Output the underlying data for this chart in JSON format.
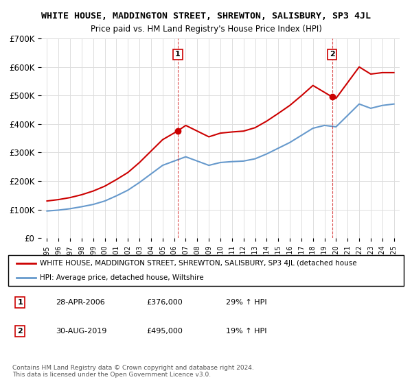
{
  "title": "WHITE HOUSE, MADDINGTON STREET, SHREWTON, SALISBURY, SP3 4JL",
  "subtitle": "Price paid vs. HM Land Registry's House Price Index (HPI)",
  "xlabel": "",
  "ylabel": "",
  "ylim": [
    0,
    700000
  ],
  "yticks": [
    0,
    100000,
    200000,
    300000,
    400000,
    500000,
    600000,
    700000
  ],
  "ytick_labels": [
    "£0",
    "£100K",
    "£200K",
    "£300K",
    "£400K",
    "£500K",
    "£600K",
    "£700K"
  ],
  "sale1_year": 2006.32,
  "sale1_price": 376000,
  "sale1_label": "1",
  "sale2_year": 2019.66,
  "sale2_price": 495000,
  "sale2_label": "2",
  "red_line_color": "#cc0000",
  "blue_line_color": "#6699cc",
  "dashed_line_color": "#cc0000",
  "marker_label_bg": "#ffffff",
  "marker_label_border": "#cc0000",
  "grid_color": "#dddddd",
  "background_color": "#ffffff",
  "legend_line1": "WHITE HOUSE, MADDINGTON STREET, SHREWTON, SALISBURY, SP3 4JL (detached house",
  "legend_line2": "HPI: Average price, detached house, Wiltshire",
  "table_row1": "1    28-APR-2006    £376,000    29% ↑ HPI",
  "table_row2": "2    30-AUG-2019    £495,000    19% ↑ HPI",
  "footnote": "Contains HM Land Registry data © Crown copyright and database right 2024.\nThis data is licensed under the Open Government Licence v3.0.",
  "hpi_years": [
    1995,
    1996,
    1997,
    1998,
    1999,
    2000,
    2001,
    2002,
    2003,
    2004,
    2005,
    2006,
    2007,
    2008,
    2009,
    2010,
    2011,
    2012,
    2013,
    2014,
    2015,
    2016,
    2017,
    2018,
    2019,
    2020,
    2021,
    2022,
    2023,
    2024,
    2025
  ],
  "hpi_values": [
    95000,
    98000,
    103000,
    110000,
    118000,
    130000,
    148000,
    168000,
    195000,
    225000,
    255000,
    270000,
    285000,
    270000,
    255000,
    265000,
    268000,
    270000,
    278000,
    295000,
    315000,
    335000,
    360000,
    385000,
    395000,
    390000,
    430000,
    470000,
    455000,
    465000,
    470000
  ],
  "property_years": [
    1995,
    1996,
    1997,
    1998,
    1999,
    2000,
    2001,
    2002,
    2003,
    2004,
    2005,
    2006.32,
    2007,
    2008,
    2009,
    2010,
    2011,
    2012,
    2013,
    2014,
    2015,
    2016,
    2017,
    2018,
    2019.66,
    2020,
    2021,
    2022,
    2023,
    2024,
    2025
  ],
  "property_values": [
    130000,
    135000,
    142000,
    152000,
    165000,
    182000,
    205000,
    230000,
    265000,
    305000,
    345000,
    376000,
    395000,
    375000,
    355000,
    368000,
    372000,
    375000,
    387000,
    410000,
    437000,
    465000,
    499000,
    535000,
    495000,
    490000,
    545000,
    600000,
    575000,
    580000,
    580000
  ]
}
